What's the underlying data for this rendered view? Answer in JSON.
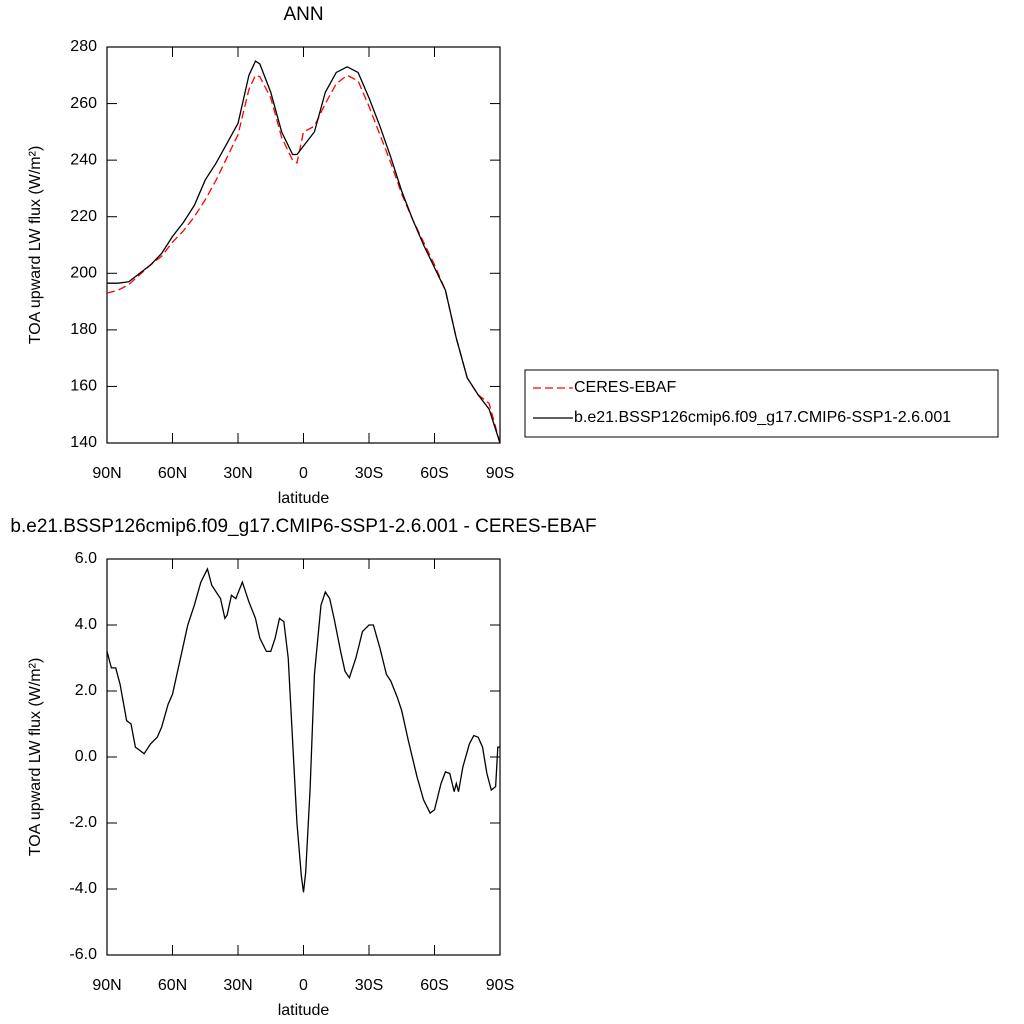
{
  "chart_data": [
    {
      "type": "line",
      "title": "ANN",
      "xlabel": "latitude",
      "ylabel": "TOA upward LW flux (W/m²)",
      "x": [
        90,
        85,
        80,
        75,
        70,
        65,
        60,
        55,
        50,
        45,
        40,
        35,
        30,
        25,
        22,
        20,
        15,
        10,
        5,
        3,
        0,
        -5,
        -10,
        -15,
        -20,
        -25,
        -30,
        -35,
        -40,
        -45,
        -50,
        -55,
        -60,
        -65,
        -70,
        -75,
        -80,
        -85,
        -90
      ],
      "series": [
        {
          "name": "CERES-EBAF",
          "color": "#ff0000",
          "linestyle": "dashed",
          "values": [
            193,
            194,
            196,
            199.5,
            203,
            206,
            211,
            215,
            220,
            226,
            233,
            241,
            249,
            265,
            270,
            269.5,
            262,
            248,
            240,
            239,
            250,
            252,
            260,
            267,
            270,
            268,
            259,
            249,
            239,
            228,
            219,
            211,
            203,
            194,
            177,
            163,
            157,
            154,
            140
          ]
        },
        {
          "name": "b.e21.BSSP126cmip6.f09_g17.CMIP6-SSP1-2.6.001",
          "color": "#000000",
          "linestyle": "solid",
          "values": [
            196.5,
            196.5,
            197,
            200,
            203,
            207,
            213,
            218,
            224,
            233,
            239,
            246,
            253,
            270,
            275,
            274,
            264,
            250,
            242,
            242,
            245,
            250,
            264,
            271,
            273,
            271,
            262,
            252,
            241,
            229,
            219,
            210,
            202,
            194,
            177,
            163,
            157,
            152,
            140
          ]
        }
      ],
      "xlim": [
        90,
        -90
      ],
      "xticks": [
        {
          "value": 90,
          "label": "90N"
        },
        {
          "value": 60,
          "label": "60N"
        },
        {
          "value": 30,
          "label": "30N"
        },
        0,
        {
          "value": -30,
          "label": "30S"
        },
        {
          "value": -60,
          "label": "60S"
        },
        {
          "value": -90,
          "label": "90S"
        }
      ],
      "ylim": [
        140,
        280
      ],
      "yticks": [
        140,
        160,
        180,
        200,
        220,
        240,
        260,
        280
      ],
      "legend": "outside-right"
    },
    {
      "type": "line",
      "title": "b.e21.BSSP126cmip6.f09_g17.CMIP6-SSP1-2.6.001 - CERES-EBAF",
      "xlabel": "latitude",
      "ylabel": "TOA upward LW flux (W/m²)",
      "x": [
        90,
        88,
        86,
        84,
        81,
        79,
        77,
        75,
        73,
        70,
        67,
        65,
        62,
        60,
        57,
        53,
        50,
        47,
        44,
        42,
        40,
        38,
        36,
        35,
        33,
        31,
        28,
        25,
        22,
        20,
        17,
        15,
        13,
        11,
        9,
        7,
        5,
        3,
        1,
        0,
        -1,
        -3,
        -5,
        -8,
        -10,
        -12,
        -14,
        -17,
        -19,
        -21,
        -24,
        -27,
        -30,
        -32,
        -35,
        -38,
        -40,
        -43,
        -45,
        -48,
        -52,
        -55,
        -58,
        -60,
        -63,
        -65,
        -67,
        -69,
        -70,
        -71,
        -73,
        -76,
        -78,
        -80,
        -82,
        -84,
        -86,
        -88,
        -89,
        -90
      ],
      "series": [
        {
          "name": "b.e21.BSSP126cmip6.f09_g17.CMIP6-SSP1-2.6.001 - CERES-EBAF",
          "color": "#000000",
          "linestyle": "solid",
          "values": [
            3.2,
            2.7,
            2.7,
            2.2,
            1.1,
            1.0,
            0.3,
            0.2,
            0.1,
            0.4,
            0.6,
            0.9,
            1.6,
            1.9,
            2.8,
            4.0,
            4.6,
            5.3,
            5.7,
            5.2,
            5.0,
            4.8,
            4.2,
            4.3,
            4.9,
            4.8,
            5.3,
            4.7,
            4.2,
            3.6,
            3.2,
            3.2,
            3.6,
            4.2,
            4.1,
            3.0,
            0.5,
            -2.0,
            -3.6,
            -4.1,
            -3.5,
            -1.0,
            2.5,
            4.6,
            5.0,
            4.8,
            4.2,
            3.2,
            2.6,
            2.4,
            3.0,
            3.8,
            4.0,
            4.0,
            3.3,
            2.5,
            2.3,
            1.8,
            1.4,
            0.5,
            -0.6,
            -1.3,
            -1.7,
            -1.6,
            -0.8,
            -0.45,
            -0.5,
            -1.05,
            -0.8,
            -1.05,
            -0.3,
            0.4,
            0.65,
            0.6,
            0.3,
            -0.5,
            -1.0,
            -0.9,
            0.3,
            0.3
          ]
        }
      ],
      "xlim": [
        90,
        -90
      ],
      "xticks": [
        {
          "value": 90,
          "label": "90N"
        },
        {
          "value": 60,
          "label": "60N"
        },
        {
          "value": 30,
          "label": "30N"
        },
        0,
        {
          "value": -30,
          "label": "30S"
        },
        {
          "value": -60,
          "label": "60S"
        },
        {
          "value": -90,
          "label": "90S"
        }
      ],
      "ylim": [
        -6,
        6
      ],
      "yticks": [
        {
          "value": -6,
          "label": "-6.0"
        },
        {
          "value": -4,
          "label": "-4.0"
        },
        {
          "value": -2,
          "label": "-2.0"
        },
        {
          "value": 0,
          "label": "0.0"
        },
        {
          "value": 2,
          "label": "2.0"
        },
        {
          "value": 4,
          "label": "4.0"
        },
        {
          "value": 6,
          "label": "6.0"
        }
      ]
    }
  ]
}
